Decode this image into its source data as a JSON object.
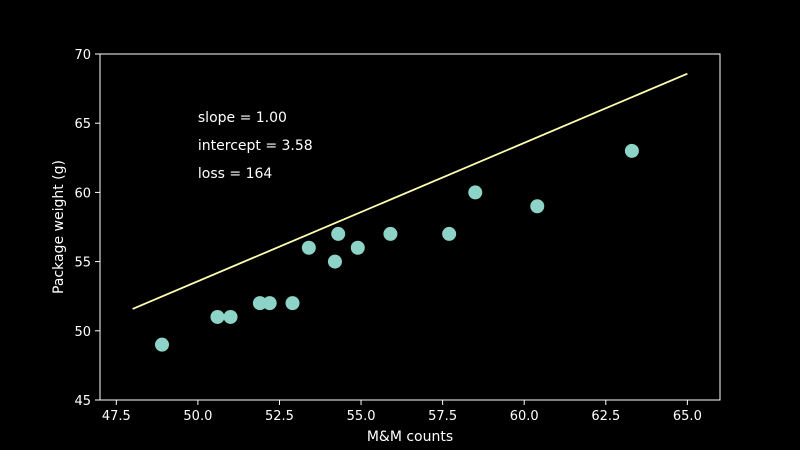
{
  "chart_data": {
    "type": "scatter",
    "xlabel": "M&M counts",
    "ylabel": "Package weight (g)",
    "xlim": [
      47.0,
      66.0
    ],
    "ylim": [
      45,
      70
    ],
    "xticks": [
      47.5,
      50.0,
      52.5,
      55.0,
      57.5,
      60.0,
      62.5,
      65.0
    ],
    "xtick_labels": [
      "47.5",
      "50.0",
      "52.5",
      "55.0",
      "57.5",
      "60.0",
      "62.5",
      "65.0"
    ],
    "yticks": [
      45,
      50,
      55,
      60,
      65,
      70
    ],
    "ytick_labels": [
      "45",
      "50",
      "55",
      "60",
      "65",
      "70"
    ],
    "grid": false,
    "points": {
      "x": [
        48.9,
        50.6,
        51.0,
        51.9,
        52.2,
        52.9,
        53.4,
        54.2,
        54.3,
        54.9,
        55.9,
        57.7,
        58.5,
        60.4,
        63.3
      ],
      "y": [
        49,
        51,
        51,
        52,
        52,
        52,
        56,
        55,
        57,
        56,
        57,
        57,
        60,
        59,
        63
      ]
    },
    "fit_line": {
      "x": [
        48.0,
        65.0
      ],
      "y": [
        51.58,
        68.58
      ]
    },
    "annotations": [
      {
        "text": "slope = 1.00"
      },
      {
        "text": "intercept = 3.58"
      },
      {
        "text": "loss = 164"
      }
    ],
    "colors": {
      "background": "#000000",
      "foreground": "#ffffff",
      "points": "#8dd3c7",
      "line": "#ffffb3"
    }
  }
}
